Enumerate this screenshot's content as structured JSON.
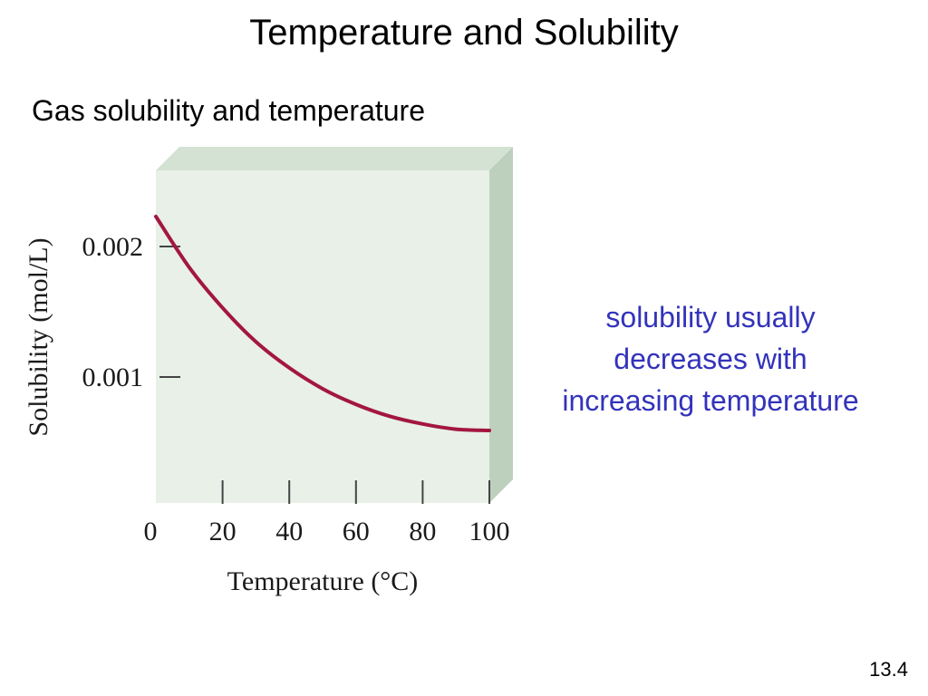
{
  "slide": {
    "title": "Temperature and Solubility",
    "subtitle": "Gas solubility and temperature",
    "callout_lines": [
      "solubility usually",
      "decreases with",
      "increasing temperature"
    ],
    "callout_color": "#3333bb",
    "slide_number": "13.4"
  },
  "chart_data": {
    "type": "line",
    "title": "",
    "xlabel": "Temperature (°C)",
    "ylabel": "Solubility (mol/L)",
    "xlim": [
      0,
      100
    ],
    "ylim": [
      0,
      0.0025
    ],
    "x_ticks": [
      0,
      20,
      40,
      60,
      80,
      100
    ],
    "x_tick_labels": [
      "0",
      "20",
      "40",
      "60",
      "80",
      "100"
    ],
    "y_ticks": [
      0.001,
      0.002
    ],
    "y_tick_labels": [
      "0.001",
      "0.002"
    ],
    "grid": false,
    "legend": "none",
    "colors": {
      "line": "#a3173e",
      "panel_front": "#e8f0e8",
      "panel_top": "#d4e2d4",
      "panel_side": "#bdd0bd"
    },
    "series": [
      {
        "x": [
          0,
          10,
          20,
          30,
          40,
          50,
          60,
          70,
          80,
          90,
          100
        ],
        "y": [
          0.00223,
          0.00184,
          0.00153,
          0.00127,
          0.00107,
          0.00091,
          0.00079,
          0.0007,
          0.00064,
          0.0006,
          0.00059
        ]
      }
    ]
  }
}
